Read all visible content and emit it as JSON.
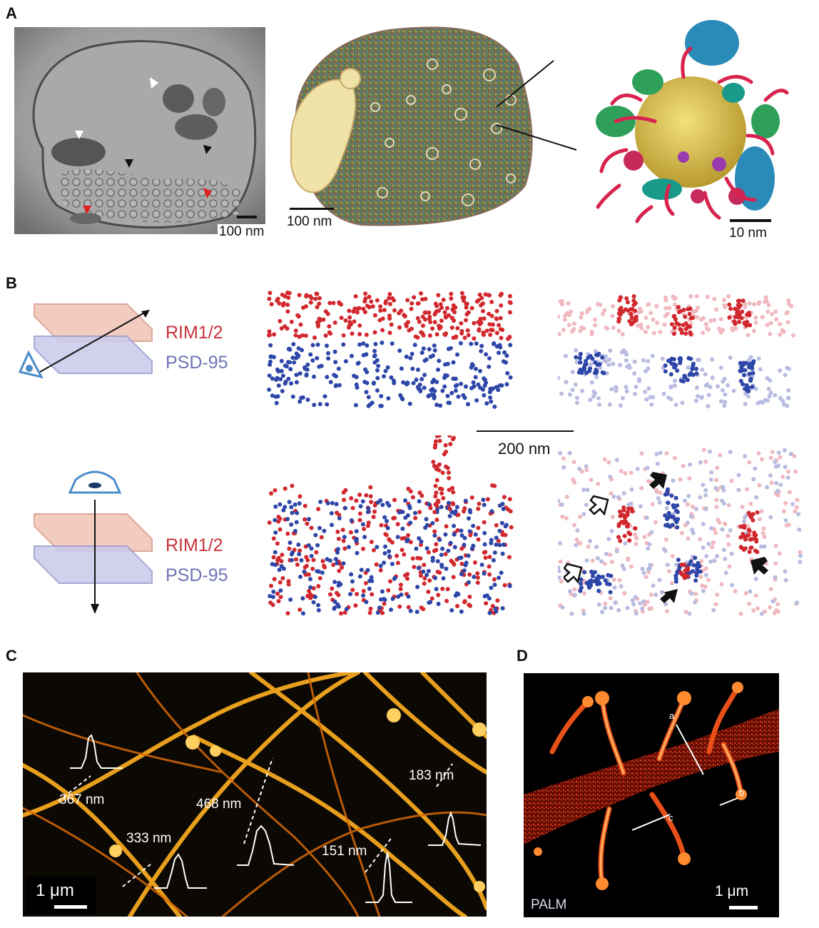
{
  "panels": {
    "a": "A",
    "b": "B",
    "c": "C",
    "d": "D"
  },
  "panel_a": {
    "scale_em": "100 nm",
    "scale_model": "100 nm",
    "scale_vesicle": "10 nm"
  },
  "panel_b": {
    "label_red": "RIM1/2",
    "label_blue": "PSD-95",
    "scale_bar": "200 nm",
    "colors": {
      "red": "#d1282e",
      "blue": "#2d46a8",
      "red_light": "#f0b8bf",
      "blue_light": "#b8bce0"
    }
  },
  "panel_c": {
    "profiles": [
      "367 nm",
      "468 nm",
      "183 nm",
      "333 nm",
      "151 nm"
    ],
    "scale_bar": "1 μm"
  },
  "panel_d": {
    "line_labels": [
      "a",
      "b",
      "c"
    ],
    "method": "PALM",
    "scale_bar": "1 μm"
  }
}
